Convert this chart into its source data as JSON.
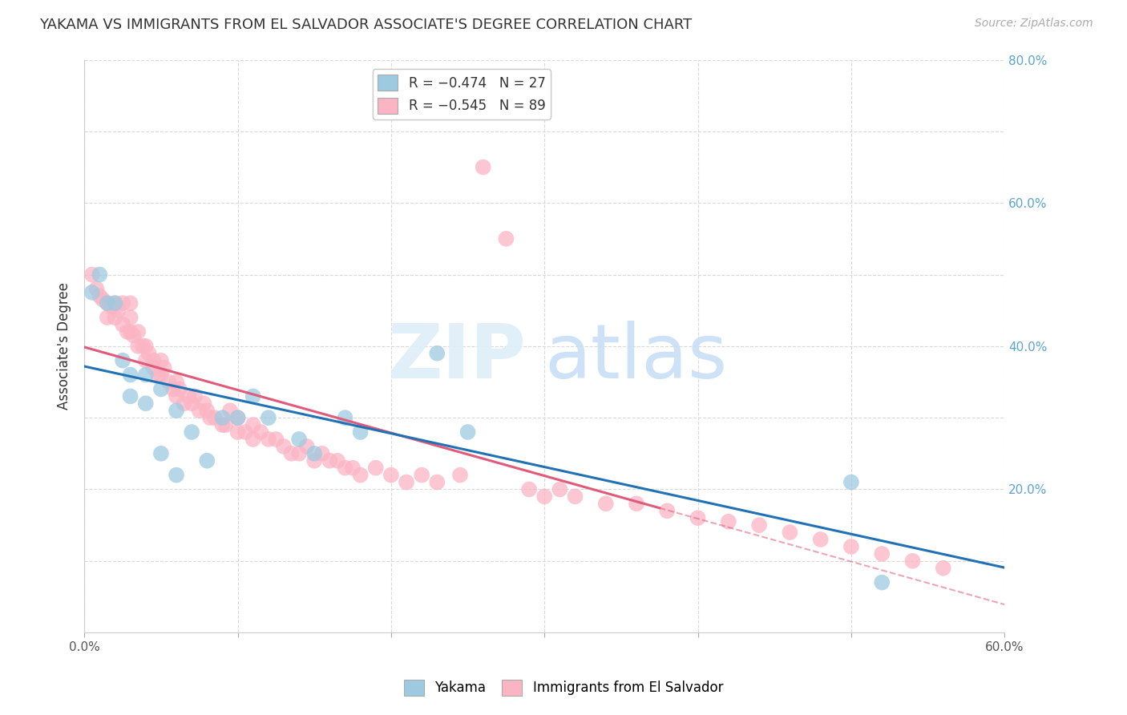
{
  "title": "YAKAMA VS IMMIGRANTS FROM EL SALVADOR ASSOCIATE'S DEGREE CORRELATION CHART",
  "source": "Source: ZipAtlas.com",
  "ylabel": "Associate's Degree",
  "xlim": [
    0.0,
    0.6
  ],
  "ylim": [
    0.0,
    0.8
  ],
  "x_ticks": [
    0.0,
    0.1,
    0.2,
    0.3,
    0.4,
    0.5,
    0.6
  ],
  "y_ticks_right": [
    0.0,
    0.2,
    0.4,
    0.6,
    0.8
  ],
  "trendline_color_1": "#2171b5",
  "trendline_color_2": "#e05a7a",
  "scatter_color_1": "#9ecae1",
  "scatter_color_2": "#fbb4c3",
  "grid_color": "#d9d9d9",
  "background_color": "#ffffff",
  "right_axis_color": "#5ba3d0",
  "yakama_x": [
    0.005,
    0.01,
    0.015,
    0.02,
    0.025,
    0.03,
    0.03,
    0.04,
    0.04,
    0.05,
    0.05,
    0.06,
    0.06,
    0.07,
    0.08,
    0.09,
    0.1,
    0.11,
    0.12,
    0.14,
    0.15,
    0.17,
    0.18,
    0.23,
    0.25,
    0.5,
    0.52
  ],
  "yakama_y": [
    0.475,
    0.5,
    0.46,
    0.46,
    0.38,
    0.36,
    0.33,
    0.36,
    0.32,
    0.34,
    0.25,
    0.31,
    0.22,
    0.28,
    0.24,
    0.3,
    0.3,
    0.33,
    0.3,
    0.27,
    0.25,
    0.3,
    0.28,
    0.39,
    0.28,
    0.21,
    0.07
  ],
  "salvador_x": [
    0.005,
    0.008,
    0.01,
    0.012,
    0.015,
    0.015,
    0.018,
    0.02,
    0.02,
    0.022,
    0.025,
    0.025,
    0.028,
    0.03,
    0.03,
    0.03,
    0.032,
    0.035,
    0.035,
    0.038,
    0.04,
    0.04,
    0.042,
    0.045,
    0.045,
    0.048,
    0.05,
    0.05,
    0.052,
    0.055,
    0.058,
    0.06,
    0.06,
    0.062,
    0.065,
    0.068,
    0.07,
    0.072,
    0.075,
    0.078,
    0.08,
    0.082,
    0.085,
    0.09,
    0.092,
    0.095,
    0.1,
    0.1,
    0.105,
    0.11,
    0.11,
    0.115,
    0.12,
    0.125,
    0.13,
    0.135,
    0.14,
    0.145,
    0.15,
    0.155,
    0.16,
    0.165,
    0.17,
    0.175,
    0.18,
    0.19,
    0.2,
    0.21,
    0.22,
    0.23,
    0.245,
    0.26,
    0.275,
    0.29,
    0.3,
    0.31,
    0.32,
    0.34,
    0.36,
    0.38,
    0.4,
    0.42,
    0.44,
    0.46,
    0.48,
    0.5,
    0.52,
    0.54,
    0.56
  ],
  "salvador_y": [
    0.5,
    0.48,
    0.47,
    0.465,
    0.46,
    0.44,
    0.455,
    0.44,
    0.46,
    0.45,
    0.43,
    0.46,
    0.42,
    0.44,
    0.46,
    0.42,
    0.415,
    0.42,
    0.4,
    0.4,
    0.38,
    0.4,
    0.39,
    0.37,
    0.38,
    0.36,
    0.36,
    0.38,
    0.37,
    0.35,
    0.34,
    0.35,
    0.33,
    0.34,
    0.32,
    0.33,
    0.32,
    0.33,
    0.31,
    0.32,
    0.31,
    0.3,
    0.3,
    0.29,
    0.29,
    0.31,
    0.3,
    0.28,
    0.28,
    0.29,
    0.27,
    0.28,
    0.27,
    0.27,
    0.26,
    0.25,
    0.25,
    0.26,
    0.24,
    0.25,
    0.24,
    0.24,
    0.23,
    0.23,
    0.22,
    0.23,
    0.22,
    0.21,
    0.22,
    0.21,
    0.22,
    0.65,
    0.55,
    0.2,
    0.19,
    0.2,
    0.19,
    0.18,
    0.18,
    0.17,
    0.16,
    0.155,
    0.15,
    0.14,
    0.13,
    0.12,
    0.11,
    0.1,
    0.09
  ]
}
